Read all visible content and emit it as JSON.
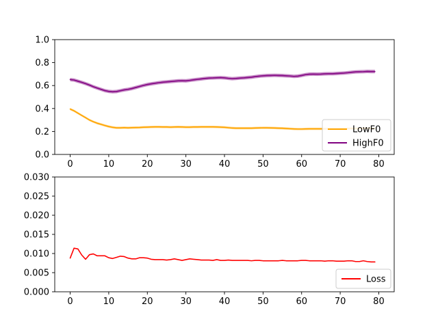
{
  "chart_data": [
    {
      "type": "line",
      "title": "",
      "xlabel": "",
      "ylabel": "",
      "xlim": [
        -4,
        84
      ],
      "ylim": [
        0.0,
        1.0
      ],
      "xticks": [
        0,
        10,
        20,
        30,
        40,
        50,
        60,
        70,
        80
      ],
      "xtick_labels": [
        "0",
        "10",
        "20",
        "30",
        "40",
        "50",
        "60",
        "70",
        "80"
      ],
      "yticks": [
        0.0,
        0.2,
        0.4,
        0.6,
        0.8,
        1.0
      ],
      "ytick_labels": [
        "0.0",
        "0.2",
        "0.4",
        "0.6",
        "0.8",
        "1.0"
      ],
      "grid": false,
      "legend_position": "lower-right",
      "x": [
        0,
        1,
        2,
        3,
        4,
        5,
        6,
        7,
        8,
        9,
        10,
        11,
        12,
        13,
        14,
        15,
        16,
        17,
        18,
        19,
        20,
        21,
        22,
        23,
        24,
        25,
        26,
        27,
        28,
        29,
        30,
        31,
        32,
        33,
        34,
        35,
        36,
        37,
        38,
        39,
        40,
        41,
        42,
        43,
        44,
        45,
        46,
        47,
        48,
        49,
        50,
        51,
        52,
        53,
        54,
        55,
        56,
        57,
        58,
        59,
        60,
        61,
        62,
        63,
        64,
        65,
        66,
        67,
        68,
        69,
        70,
        71,
        72,
        73,
        74,
        75,
        76,
        77,
        78,
        79
      ],
      "series": [
        {
          "name": "LowF0",
          "color": "#ffa500",
          "band": 0.01,
          "values": [
            0.395,
            0.38,
            0.36,
            0.34,
            0.32,
            0.3,
            0.285,
            0.272,
            0.262,
            0.252,
            0.243,
            0.236,
            0.232,
            0.232,
            0.233,
            0.232,
            0.233,
            0.234,
            0.235,
            0.237,
            0.238,
            0.239,
            0.24,
            0.24,
            0.239,
            0.239,
            0.238,
            0.239,
            0.24,
            0.239,
            0.238,
            0.238,
            0.239,
            0.239,
            0.24,
            0.24,
            0.24,
            0.24,
            0.239,
            0.238,
            0.236,
            0.233,
            0.23,
            0.229,
            0.229,
            0.229,
            0.229,
            0.229,
            0.23,
            0.231,
            0.232,
            0.232,
            0.231,
            0.23,
            0.229,
            0.228,
            0.226,
            0.224,
            0.222,
            0.221,
            0.221,
            0.222,
            0.223,
            0.223,
            0.223,
            0.223,
            0.223,
            0.224,
            0.224,
            0.224,
            0.225,
            0.225,
            0.225,
            0.226,
            0.226,
            0.226,
            0.227,
            0.227,
            0.227,
            0.227
          ]
        },
        {
          "name": "HighF0",
          "color": "#800080",
          "band": 0.015,
          "values": [
            0.652,
            0.648,
            0.638,
            0.628,
            0.617,
            0.604,
            0.59,
            0.578,
            0.567,
            0.556,
            0.549,
            0.546,
            0.548,
            0.555,
            0.562,
            0.567,
            0.574,
            0.583,
            0.592,
            0.601,
            0.609,
            0.615,
            0.62,
            0.625,
            0.629,
            0.632,
            0.635,
            0.638,
            0.641,
            0.642,
            0.641,
            0.645,
            0.65,
            0.654,
            0.658,
            0.662,
            0.665,
            0.666,
            0.668,
            0.669,
            0.667,
            0.663,
            0.66,
            0.662,
            0.665,
            0.667,
            0.67,
            0.673,
            0.678,
            0.682,
            0.685,
            0.687,
            0.688,
            0.689,
            0.688,
            0.687,
            0.685,
            0.683,
            0.68,
            0.682,
            0.688,
            0.695,
            0.699,
            0.7,
            0.699,
            0.7,
            0.702,
            0.703,
            0.703,
            0.705,
            0.707,
            0.709,
            0.712,
            0.716,
            0.719,
            0.72,
            0.721,
            0.723,
            0.722,
            0.722
          ]
        }
      ]
    },
    {
      "type": "line",
      "title": "",
      "xlabel": "",
      "ylabel": "",
      "xlim": [
        -4,
        84
      ],
      "ylim": [
        0.0,
        0.03
      ],
      "xticks": [
        0,
        10,
        20,
        30,
        40,
        50,
        60,
        70,
        80
      ],
      "xtick_labels": [
        "0",
        "10",
        "20",
        "30",
        "40",
        "50",
        "60",
        "70",
        "80"
      ],
      "yticks": [
        0.0,
        0.005,
        0.01,
        0.015,
        0.02,
        0.025,
        0.03
      ],
      "ytick_labels": [
        "0.000",
        "0.005",
        "0.010",
        "0.015",
        "0.020",
        "0.025",
        "0.030"
      ],
      "grid": false,
      "legend_position": "lower-right",
      "x": [
        0,
        1,
        2,
        3,
        4,
        5,
        6,
        7,
        8,
        9,
        10,
        11,
        12,
        13,
        14,
        15,
        16,
        17,
        18,
        19,
        20,
        21,
        22,
        23,
        24,
        25,
        26,
        27,
        28,
        29,
        30,
        31,
        32,
        33,
        34,
        35,
        36,
        37,
        38,
        39,
        40,
        41,
        42,
        43,
        44,
        45,
        46,
        47,
        48,
        49,
        50,
        51,
        52,
        53,
        54,
        55,
        56,
        57,
        58,
        59,
        60,
        61,
        62,
        63,
        64,
        65,
        66,
        67,
        68,
        69,
        70,
        71,
        72,
        73,
        74,
        75,
        76,
        77,
        78,
        79
      ],
      "series": [
        {
          "name": "Loss",
          "color": "#ff0000",
          "values": [
            0.0088,
            0.0114,
            0.0112,
            0.0096,
            0.0085,
            0.0097,
            0.0099,
            0.0094,
            0.0094,
            0.0094,
            0.0089,
            0.0087,
            0.009,
            0.0093,
            0.0092,
            0.0088,
            0.0086,
            0.0086,
            0.0089,
            0.0089,
            0.0088,
            0.0085,
            0.0084,
            0.0084,
            0.0084,
            0.0083,
            0.0084,
            0.0086,
            0.0084,
            0.0082,
            0.0084,
            0.0086,
            0.0085,
            0.0084,
            0.0083,
            0.0083,
            0.0083,
            0.0082,
            0.0084,
            0.0082,
            0.0082,
            0.0083,
            0.0082,
            0.0082,
            0.0082,
            0.0082,
            0.0082,
            0.0081,
            0.0082,
            0.0082,
            0.0081,
            0.0081,
            0.0081,
            0.0081,
            0.0081,
            0.0082,
            0.0081,
            0.0081,
            0.0081,
            0.0081,
            0.0082,
            0.0082,
            0.0081,
            0.0081,
            0.0081,
            0.0081,
            0.008,
            0.0081,
            0.0081,
            0.008,
            0.008,
            0.008,
            0.0081,
            0.0081,
            0.0079,
            0.0079,
            0.0081,
            0.0079,
            0.0078,
            0.0078
          ]
        }
      ]
    }
  ]
}
